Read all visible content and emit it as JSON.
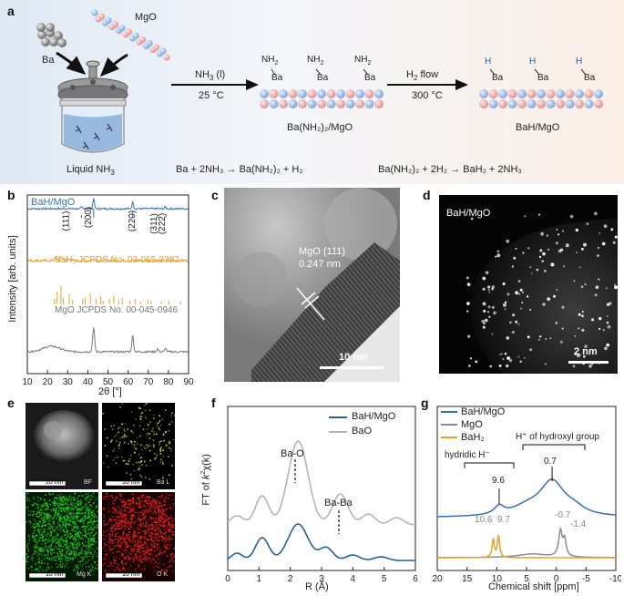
{
  "panel_labels": {
    "a": "a",
    "b": "b",
    "c": "c",
    "d": "d",
    "e": "e",
    "f": "f",
    "g": "g"
  },
  "scheme": {
    "ba_label": "Ba",
    "mgo_label": "MgO",
    "liquid_label": "Liquid NH",
    "liquid_sub": "3",
    "step1_top": "NH",
    "step1_top_sub": "3",
    "step1_top_tail": " (l)",
    "step1_bottom": "25 °C",
    "step2_top": "H",
    "step2_top_sub": "2",
    "step2_top_tail": " flow",
    "step2_bottom": "300 °C",
    "nh2": "NH",
    "nh2_sub": "2",
    "ba": "Ba",
    "h": "H",
    "product1_label": "Ba(NH₂)₂/MgO",
    "product2_label": "BaH/MgO",
    "equation1": "Ba + 2NH₃ → Ba(NH₂)₂ + H₂",
    "equation2": "Ba(NH₂)₂ + 2H₂ → BaH₂ + 2NH₃"
  },
  "xrd": {
    "series_labels": [
      "BaH/MgO",
      "BaH₂ JCPDS No. 03-065-2387",
      "MgO JCPDS No. 00-045-0946"
    ],
    "peak_labels": [
      "(111)",
      "(200)",
      "(220)",
      "(311)",
      "(222)"
    ],
    "x_ticks": [
      "10",
      "20",
      "30",
      "40",
      "50",
      "60",
      "70",
      "80",
      "90"
    ],
    "xlabel": "2θ [°]",
    "ylabel": "Intensity [arb. units]",
    "colors": {
      "bah_mgo": "#3d6fa8",
      "bah2": "#e8a030",
      "mgo": "#777777"
    }
  },
  "tem": {
    "annotation1": "MgO (111)",
    "annotation2": "0.247 nm",
    "scalebar": "10 nm"
  },
  "haadf": {
    "title": "BaH/MgO",
    "scalebar": "2 nm"
  },
  "eds": {
    "scale": "10 nm",
    "tiles": [
      {
        "label": "BF",
        "color": "#cccccc"
      },
      {
        "label": "Ba L",
        "color": "#e6e640"
      },
      {
        "label": "Mg K",
        "color": "#22cc22"
      },
      {
        "label": "O K",
        "color": "#ee2222"
      }
    ]
  },
  "exafs": {
    "legend": [
      "BaH/MgO",
      "BaO"
    ],
    "annot_bao": "Ba-O",
    "annot_baba": "Ba-Ba",
    "x_ticks": [
      "0",
      "1",
      "2",
      "3",
      "4",
      "5",
      "6"
    ],
    "xlabel": "R (Å)",
    "ylabel_a": "FT of ",
    "ylabel_b": "k",
    "ylabel_c": "2",
    "ylabel_d": "χ(k)",
    "colors": {
      "bah_mgo": "#2c5f94",
      "bao": "#b5b5b5"
    }
  },
  "nmr": {
    "legend": [
      "BaH/MgO",
      "MgO",
      "BaH₂"
    ],
    "hydroxyl_label": "H⁺ of hydroxyl group",
    "hydridic_label": "hydridic H⁻",
    "peak_labels": [
      "9.6",
      "0.7",
      "10.6",
      "9.7",
      "-0.7",
      "-1.4"
    ],
    "x_ticks": [
      "20",
      "15",
      "10",
      "5",
      "0",
      "-5",
      "-10"
    ],
    "xlabel": "Chemical shift [ppm]",
    "colors": {
      "bah_mgo": "#3d6fa8",
      "mgo": "#8c8c8c",
      "bah2": "#e8a030"
    }
  }
}
